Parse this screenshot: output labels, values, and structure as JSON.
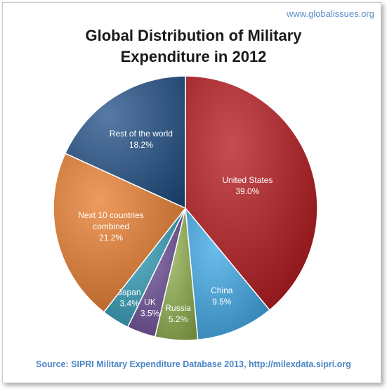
{
  "header": {
    "brand": "www.globalissues.org",
    "title_line1": "Global Distribution of Military",
    "title_line2": "Expenditure in 2012"
  },
  "footer": {
    "source": "Source: SIPRI Military Expenditure Database 2013, http://milexdata.sipri.org"
  },
  "chart_data": {
    "type": "pie",
    "title": "Global Distribution of Military Expenditure in 2012",
    "slices": [
      {
        "label": "United States",
        "value": 39.0,
        "value_label": "39.0%",
        "color": "#b31217"
      },
      {
        "label": "China",
        "value": 9.5,
        "value_label": "9.5%",
        "color": "#3aa7e6"
      },
      {
        "label": "Russia",
        "value": 5.2,
        "value_label": "5.2%",
        "color": "#8fb04c"
      },
      {
        "label": "UK",
        "value": 3.5,
        "value_label": "3.5%",
        "color": "#6a4a96"
      },
      {
        "label": "Japan",
        "value": 3.4,
        "value_label": "3.4%",
        "color": "#2e9bb5"
      },
      {
        "label": "Next 10 countries combined",
        "value": 21.2,
        "value_label": "21.2%",
        "color": "#e8792a"
      },
      {
        "label": "Rest of the world",
        "value": 18.2,
        "value_label": "18.2%",
        "color": "#1f4e86"
      }
    ],
    "start_angle": "12 o'clock",
    "direction": "clockwise",
    "legend": "none"
  }
}
